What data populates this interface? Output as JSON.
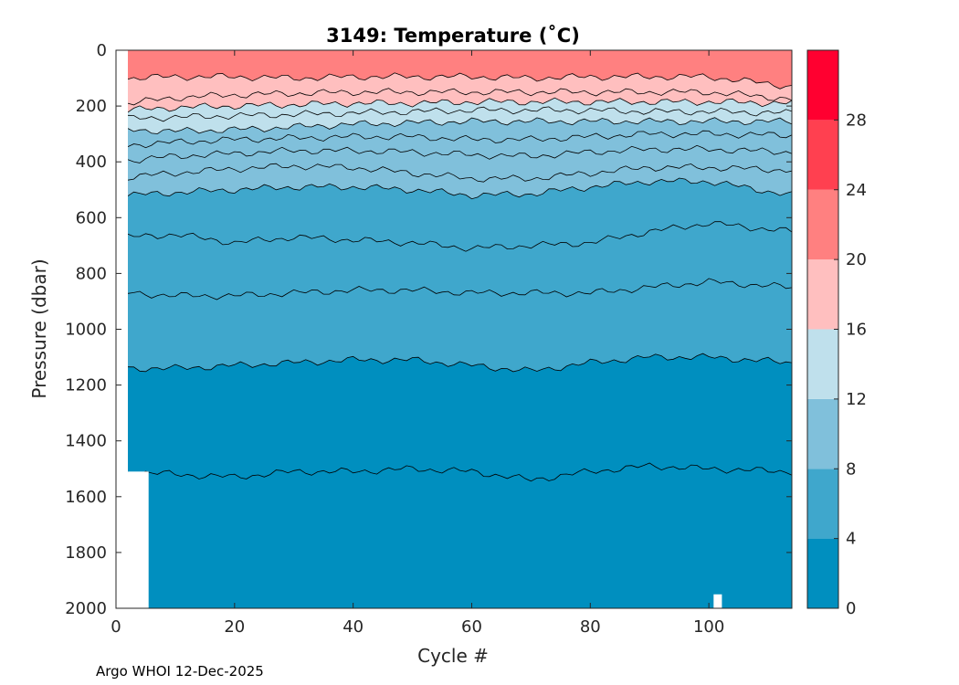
{
  "chart_data": {
    "type": "heatmap",
    "subtype": "filled-contour",
    "title": "3149:  Temperature (",
    "title_unit": "˚C)",
    "xlabel": "Cycle #",
    "ylabel": "Pressure (dbar)",
    "xlim": [
      0,
      114
    ],
    "ylim": [
      0,
      2000
    ],
    "y_reversed": true,
    "x_ticks": [
      "0",
      "20",
      "40",
      "60",
      "80",
      "100"
    ],
    "x_tick_values": [
      0,
      20,
      40,
      60,
      80,
      100
    ],
    "y_ticks": [
      "0",
      "200",
      "400",
      "600",
      "800",
      "1000",
      "1200",
      "1400",
      "1600",
      "1800",
      "2000"
    ],
    "y_tick_values": [
      0,
      200,
      400,
      600,
      800,
      1000,
      1200,
      1400,
      1600,
      1800,
      2000
    ],
    "colorbar": {
      "range": [
        0,
        32
      ],
      "tick_labels": [
        "0",
        "4",
        "8",
        "12",
        "16",
        "20",
        "24",
        "28"
      ],
      "tick_values": [
        0,
        4,
        8,
        12,
        16,
        20,
        24,
        28
      ],
      "levels": [
        {
          "from": 0,
          "to": 4,
          "color": "#008fbf"
        },
        {
          "from": 4,
          "to": 8,
          "color": "#3fa7cc"
        },
        {
          "from": 8,
          "to": 12,
          "color": "#80c0db"
        },
        {
          "from": 12,
          "to": 16,
          "color": "#bfe0ec"
        },
        {
          "from": 16,
          "to": 20,
          "color": "#ffbfbf"
        },
        {
          "from": 20,
          "to": 24,
          "color": "#ff8080"
        },
        {
          "from": 24,
          "to": 28,
          "color": "#ff4050"
        },
        {
          "from": 28,
          "to": 32,
          "color": "#ff0030"
        }
      ]
    },
    "isotherms": [
      {
        "temp": 20,
        "depth": [
          100,
          95,
          95,
          100,
          95,
          95,
          95,
          100,
          95,
          95,
          95,
          130
        ]
      },
      {
        "temp": 18,
        "depth": [
          190,
          170,
          160,
          155,
          150,
          150,
          150,
          150,
          150,
          150,
          150,
          175
        ]
      },
      {
        "temp": 16,
        "depth": [
          215,
          205,
          200,
          195,
          190,
          190,
          185,
          185,
          185,
          185,
          185,
          190
        ]
      },
      {
        "temp": 14,
        "depth": [
          245,
          240,
          235,
          230,
          225,
          220,
          215,
          215,
          215,
          220,
          220,
          225
        ]
      },
      {
        "temp": 12,
        "depth": [
          285,
          290,
          285,
          275,
          265,
          260,
          255,
          255,
          255,
          255,
          255,
          255
        ]
      },
      {
        "temp": 11,
        "depth": [
          340,
          330,
          320,
          315,
          310,
          310,
          320,
          320,
          310,
          300,
          300,
          305
        ]
      },
      {
        "temp": 10,
        "depth": [
          395,
          380,
          370,
          360,
          360,
          365,
          375,
          380,
          365,
          355,
          355,
          365
        ]
      },
      {
        "temp": 9,
        "depth": [
          455,
          440,
          425,
          415,
          420,
          440,
          460,
          460,
          440,
          420,
          420,
          430
        ]
      },
      {
        "temp": 8,
        "depth": [
          520,
          510,
          500,
          490,
          490,
          500,
          520,
          515,
          490,
          470,
          470,
          520
        ]
      },
      {
        "temp": 7,
        "depth": [
          670,
          660,
          690,
          670,
          680,
          690,
          710,
          700,
          690,
          650,
          620,
          650
        ]
      },
      {
        "temp": 6,
        "depth": [
          870,
          880,
          880,
          870,
          860,
          860,
          870,
          870,
          870,
          850,
          830,
          850
        ]
      },
      {
        "temp": 4,
        "depth": [
          1140,
          1140,
          1130,
          1120,
          1110,
          1110,
          1130,
          1150,
          1120,
          1100,
          1100,
          1120
        ]
      },
      {
        "temp": 3,
        "depth": [
          1510,
          1520,
          1530,
          1510,
          1510,
          1500,
          1510,
          1540,
          1510,
          1490,
          1500,
          1510
        ]
      }
    ],
    "isotherm_cycles": [
      2,
      10,
      20,
      30,
      40,
      50,
      60,
      70,
      80,
      90,
      100,
      114
    ]
  },
  "footer": "Argo WHOI 12-Dec-2025"
}
